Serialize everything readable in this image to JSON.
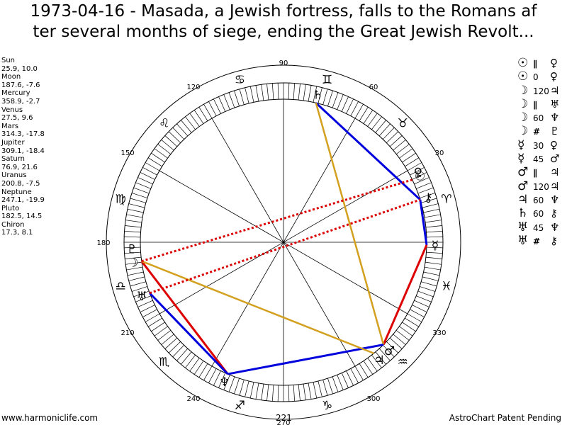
{
  "title_line1": "1973-04-16 - Masada, a Jewish fortress, falls to the Romans af",
  "title_line2": "ter several months of siege, ending the Great Jewish Revolt...",
  "planets": [
    {
      "name": "Sun",
      "value": "25.9, 10.0"
    },
    {
      "name": "Moon",
      "value": "187.6, -7.6"
    },
    {
      "name": "Mercury",
      "value": "358.9, -2.7"
    },
    {
      "name": "Venus",
      "value": "27.5, 9.6"
    },
    {
      "name": "Mars",
      "value": "314.3, -17.8"
    },
    {
      "name": "Jupiter",
      "value": "309.1, -18.4"
    },
    {
      "name": "Saturn",
      "value": "76.9, 21.6"
    },
    {
      "name": "Uranus",
      "value": "200.8, -7.5"
    },
    {
      "name": "Neptune",
      "value": "247.1, -19.9"
    },
    {
      "name": "Pluto",
      "value": "182.5, 14.5"
    },
    {
      "name": "Chiron",
      "value": "17.3, 8.1"
    }
  ],
  "aspects": [
    {
      "p1": "☉",
      "aspect": "∥",
      "p2": "♀"
    },
    {
      "p1": "☉",
      "aspect": "0",
      "p2": "♀"
    },
    {
      "p1": "☽",
      "aspect": "120",
      "p2": "♃"
    },
    {
      "p1": "☽",
      "aspect": "∥",
      "p2": "♅"
    },
    {
      "p1": "☽",
      "aspect": "60",
      "p2": "♆"
    },
    {
      "p1": "☽",
      "aspect": "#",
      "p2": "♇"
    },
    {
      "p1": "☿",
      "aspect": "30",
      "p2": "♀"
    },
    {
      "p1": "☿",
      "aspect": "45",
      "p2": "♂"
    },
    {
      "p1": "♂",
      "aspect": "∥",
      "p2": "♃"
    },
    {
      "p1": "♂",
      "aspect": "120",
      "p2": "♃"
    },
    {
      "p1": "♃",
      "aspect": "60",
      "p2": "♆"
    },
    {
      "p1": "♄",
      "aspect": "60",
      "p2": "⚷"
    },
    {
      "p1": "♅",
      "aspect": "45",
      "p2": "♆"
    },
    {
      "p1": "♅",
      "aspect": "#",
      "p2": "⚷"
    }
  ],
  "degree_labels": [
    "90",
    "60",
    "30",
    "120",
    "150",
    "180",
    "210",
    "240",
    "270",
    "300",
    "330"
  ],
  "zodiac_glyphs": [
    "♈",
    "♉",
    "♊",
    "♋",
    "♌",
    "♍",
    "♎",
    "♏",
    "♐",
    "♑",
    "♒",
    "♓"
  ],
  "chart_data": {
    "type": "astrological-wheel",
    "planets_longitude": {
      "Sun": 25.9,
      "Moon": 187.6,
      "Mercury": 358.9,
      "Venus": 27.5,
      "Mars": 314.3,
      "Jupiter": 309.1,
      "Saturn": 76.9,
      "Uranus": 200.8,
      "Neptune": 247.1,
      "Pluto": 182.5,
      "Chiron": 17.3
    },
    "planet_glyphs": {
      "Sun": "☉",
      "Moon": "☽",
      "Mercury": "☿",
      "Venus": "♀",
      "Mars": "♂",
      "Jupiter": "♃",
      "Saturn": "♄",
      "Uranus": "♅",
      "Neptune": "♆",
      "Pluto": "♇",
      "Chiron": "⚷"
    },
    "aspect_lines": [
      {
        "from": "Saturn",
        "to": "Chiron",
        "color": "#0000dd",
        "style": "solid"
      },
      {
        "from": "Chiron",
        "to": "Mercury",
        "color": "#0000dd",
        "style": "solid"
      },
      {
        "from": "Mercury",
        "to": "Mars",
        "color": "#dd0000",
        "style": "solid"
      },
      {
        "from": "Mars",
        "to": "Saturn",
        "color": "#d4a020",
        "style": "solid"
      },
      {
        "from": "Mars",
        "to": "Neptune",
        "color": "#0000dd",
        "style": "solid"
      },
      {
        "from": "Neptune",
        "to": "Moon",
        "color": "#dd0000",
        "style": "solid"
      },
      {
        "from": "Moon",
        "to": "Jupiter",
        "color": "#d4a020",
        "style": "solid"
      },
      {
        "from": "Neptune",
        "to": "Uranus",
        "color": "#0000dd",
        "style": "solid"
      },
      {
        "from": "Moon",
        "to": "Sun",
        "color": "#dd0000",
        "style": "dotted"
      },
      {
        "from": "Uranus",
        "to": "Chiron",
        "color": "#dd0000",
        "style": "dotted"
      }
    ]
  },
  "footer_left": "www.harmoniclife.com",
  "footer_mid": "221",
  "footer_right": "AstroChart Patent Pending"
}
